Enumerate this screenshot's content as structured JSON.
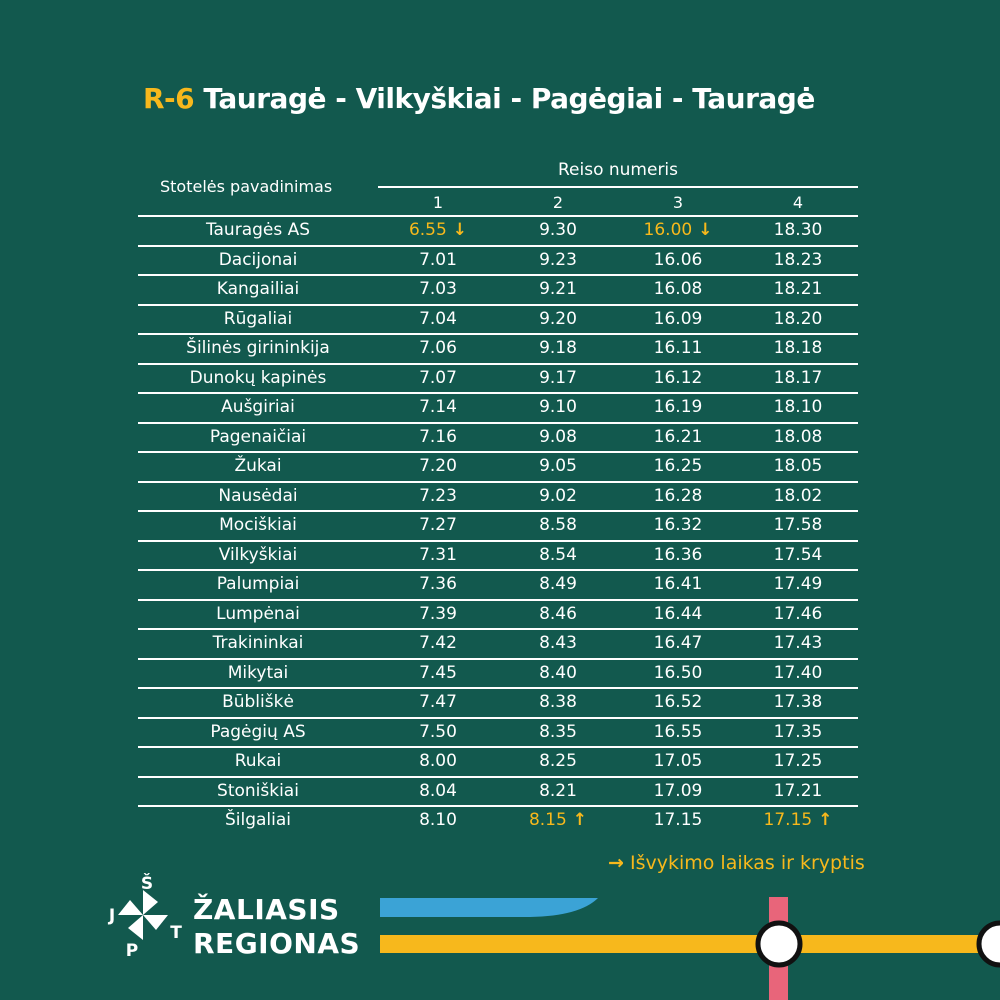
{
  "title": {
    "code": "R-6",
    "route": "Tauragė - Vilkyškiai - Pagėgiai - Tauragė"
  },
  "header": {
    "stop_col": "Stotelės pavadinimas",
    "trip_col": "Reiso numeris",
    "trips": [
      "1",
      "2",
      "3",
      "4"
    ]
  },
  "rows": [
    {
      "stop": "Tauragės AS",
      "times": [
        "6.55",
        "9.30",
        "16.00",
        "18.30"
      ],
      "dep": [
        0,
        2
      ]
    },
    {
      "stop": "Dacijonai",
      "times": [
        "7.01",
        "9.23",
        "16.06",
        "18.23"
      ]
    },
    {
      "stop": "Kangailiai",
      "times": [
        "7.03",
        "9.21",
        "16.08",
        "18.21"
      ]
    },
    {
      "stop": "Rūgaliai",
      "times": [
        "7.04",
        "9.20",
        "16.09",
        "18.20"
      ]
    },
    {
      "stop": "Šilinės girininkija",
      "times": [
        "7.06",
        "9.18",
        "16.11",
        "18.18"
      ]
    },
    {
      "stop": "Dunokų kapinės",
      "times": [
        "7.07",
        "9.17",
        "16.12",
        "18.17"
      ]
    },
    {
      "stop": "Aušgiriai",
      "times": [
        "7.14",
        "9.10",
        "16.19",
        "18.10"
      ]
    },
    {
      "stop": "Pagenaičiai",
      "times": [
        "7.16",
        "9.08",
        "16.21",
        "18.08"
      ]
    },
    {
      "stop": "Žukai",
      "times": [
        "7.20",
        "9.05",
        "16.25",
        "18.05"
      ]
    },
    {
      "stop": "Nausėdai",
      "times": [
        "7.23",
        "9.02",
        "16.28",
        "18.02"
      ]
    },
    {
      "stop": "Mociškiai",
      "times": [
        "7.27",
        "8.58",
        "16.32",
        "17.58"
      ]
    },
    {
      "stop": "Vilkyškiai",
      "times": [
        "7.31",
        "8.54",
        "16.36",
        "17.54"
      ]
    },
    {
      "stop": "Palumpiai",
      "times": [
        "7.36",
        "8.49",
        "16.41",
        "17.49"
      ]
    },
    {
      "stop": "Lumpėnai",
      "times": [
        "7.39",
        "8.46",
        "16.44",
        "17.46"
      ]
    },
    {
      "stop": "Trakininkai",
      "times": [
        "7.42",
        "8.43",
        "16.47",
        "17.43"
      ]
    },
    {
      "stop": "Mikytai",
      "times": [
        "7.45",
        "8.40",
        "16.50",
        "17.40"
      ]
    },
    {
      "stop": "Būbliškė",
      "times": [
        "7.47",
        "8.38",
        "16.52",
        "17.38"
      ]
    },
    {
      "stop": "Pagėgių AS",
      "times": [
        "7.50",
        "8.35",
        "16.55",
        "17.35"
      ]
    },
    {
      "stop": "Rukai",
      "times": [
        "8.00",
        "8.25",
        "17.05",
        "17.25"
      ]
    },
    {
      "stop": "Stoniškiai",
      "times": [
        "8.04",
        "8.21",
        "17.09",
        "17.21"
      ]
    },
    {
      "stop": "Šilgaliai",
      "times": [
        "8.10",
        "8.15",
        "17.15",
        "17.15"
      ],
      "dep": [
        1,
        3
      ]
    }
  ],
  "arrows": {
    "down": "↓",
    "up": "↑",
    "right": "→"
  },
  "legend": {
    "text": "Išvykimo laikas ir kryptis"
  },
  "brand": {
    "line1": "ŽALIASIS",
    "line2": "REGIONAS",
    "logo_letters": [
      "J",
      "Š",
      "T",
      "P"
    ]
  },
  "colors": {
    "background": "#12594e",
    "accent": "#f7b81c",
    "blue": "#3ba3d6",
    "pink": "#e8657a"
  }
}
